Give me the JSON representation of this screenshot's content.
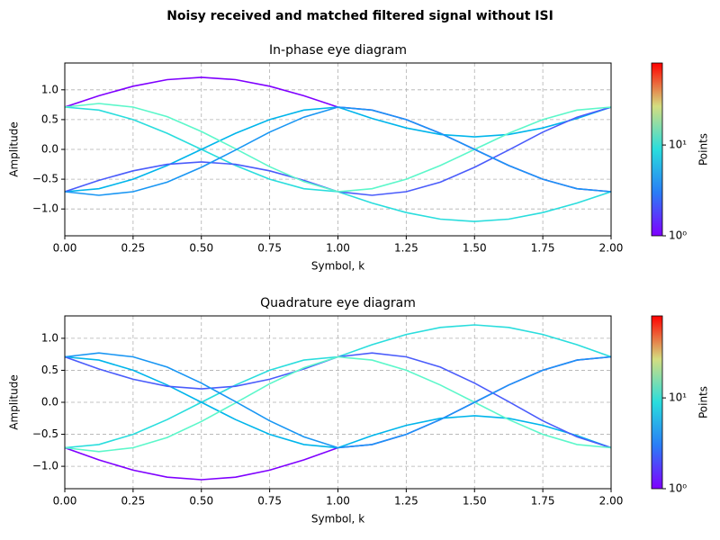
{
  "figure_title": "Noisy received and matched filtered signal without ISI",
  "chart_data": [
    {
      "type": "eye",
      "title": "In-phase eye diagram",
      "x_label": "Symbol, k",
      "y_label": "Amplitude",
      "x": [
        0,
        0.125,
        0.25,
        0.375,
        0.5,
        0.625,
        0.75,
        0.875,
        1,
        1.125,
        1.25,
        1.375,
        1.5,
        1.625,
        1.75,
        1.875,
        2
      ],
      "series": [
        {
          "color": "#7f00ff",
          "values": [
            0.71,
            0.9,
            1.06,
            1.17,
            1.21,
            1.17,
            1.06,
            0.9,
            0.71,
            0.66,
            0.5,
            0.27,
            0,
            -0.27,
            -0.5,
            -0.66,
            -0.71
          ]
        },
        {
          "color": "#2adddd",
          "values": [
            0.71,
            0.66,
            0.5,
            0.27,
            0,
            -0.27,
            -0.5,
            -0.66,
            -0.71,
            -0.9,
            -1.06,
            -1.17,
            -1.21,
            -1.17,
            -1.06,
            -0.9,
            -0.71
          ]
        },
        {
          "color": "#00b5eb",
          "values": [
            -0.71,
            -0.66,
            -0.5,
            -0.27,
            0,
            0.27,
            0.5,
            0.66,
            0.71,
            0.52,
            0.36,
            0.25,
            0.21,
            0.25,
            0.36,
            0.52,
            0.71
          ]
        },
        {
          "color": "#4a5cfb",
          "values": [
            -0.71,
            -0.52,
            -0.36,
            -0.25,
            -0.21,
            -0.25,
            -0.36,
            -0.52,
            -0.71,
            -0.77,
            -0.71,
            -0.55,
            -0.3,
            -0.01,
            0.29,
            0.54,
            0.71
          ]
        },
        {
          "color": "#5cf7ca",
          "values": [
            0.71,
            0.77,
            0.71,
            0.55,
            0.3,
            0.01,
            -0.29,
            -0.54,
            -0.71,
            -0.66,
            -0.5,
            -0.27,
            0,
            0.27,
            0.5,
            0.66,
            0.71
          ]
        },
        {
          "color": "#1996f3",
          "values": [
            -0.71,
            -0.77,
            -0.71,
            -0.55,
            -0.3,
            -0.01,
            0.29,
            0.54,
            0.71,
            0.66,
            0.5,
            0.27,
            0,
            -0.27,
            -0.5,
            -0.66,
            -0.71
          ]
        }
      ],
      "xlim": [
        0,
        2
      ],
      "ylim": [
        -1.45,
        1.45
      ],
      "xticks": [
        {
          "value": 0,
          "label": "0.00"
        },
        {
          "value": 0.25,
          "label": "0.25"
        },
        {
          "value": 0.5,
          "label": "0.50"
        },
        {
          "value": 0.75,
          "label": "0.75"
        },
        {
          "value": 1,
          "label": "1.00"
        },
        {
          "value": 1.25,
          "label": "1.25"
        },
        {
          "value": 1.5,
          "label": "1.50"
        },
        {
          "value": 1.75,
          "label": "1.75"
        },
        {
          "value": 2,
          "label": "2.00"
        }
      ],
      "yticks": [
        {
          "value": -1,
          "label": "−1.0"
        },
        {
          "value": -0.5,
          "label": "−0.5"
        },
        {
          "value": 0,
          "label": "0.0"
        },
        {
          "value": 0.5,
          "label": "0.5"
        },
        {
          "value": 1,
          "label": "1.0"
        }
      ],
      "grid": true,
      "colorbar": {
        "label": "Points",
        "log": true,
        "clim": [
          1,
          80
        ],
        "ticks": [
          {
            "value": 1,
            "label": "10⁰"
          },
          {
            "value": 10,
            "label": "10¹"
          }
        ]
      }
    },
    {
      "type": "eye",
      "title": "Quadrature eye diagram",
      "x_label": "Symbol, k",
      "y_label": "Amplitude",
      "x": [
        0,
        0.125,
        0.25,
        0.375,
        0.5,
        0.625,
        0.75,
        0.875,
        1,
        1.125,
        1.25,
        1.375,
        1.5,
        1.625,
        1.75,
        1.875,
        2
      ],
      "series": [
        {
          "color": "#7f00ff",
          "values": [
            -0.71,
            -0.9,
            -1.06,
            -1.17,
            -1.21,
            -1.17,
            -1.06,
            -0.9,
            -0.71,
            -0.66,
            -0.5,
            -0.27,
            0,
            0.27,
            0.5,
            0.66,
            0.71
          ]
        },
        {
          "color": "#2adddd",
          "values": [
            -0.71,
            -0.66,
            -0.5,
            -0.27,
            0,
            0.27,
            0.5,
            0.66,
            0.71,
            0.9,
            1.06,
            1.17,
            1.21,
            1.17,
            1.06,
            0.9,
            0.71
          ]
        },
        {
          "color": "#00b5eb",
          "values": [
            0.71,
            0.66,
            0.5,
            0.27,
            0,
            -0.27,
            -0.5,
            -0.66,
            -0.71,
            -0.52,
            -0.36,
            -0.25,
            -0.21,
            -0.25,
            -0.36,
            -0.52,
            -0.71
          ]
        },
        {
          "color": "#4a5cfb",
          "values": [
            0.71,
            0.52,
            0.36,
            0.25,
            0.21,
            0.25,
            0.36,
            0.52,
            0.71,
            0.77,
            0.71,
            0.55,
            0.3,
            0.01,
            -0.29,
            -0.54,
            -0.71
          ]
        },
        {
          "color": "#5cf7ca",
          "values": [
            -0.71,
            -0.77,
            -0.71,
            -0.55,
            -0.3,
            -0.01,
            0.29,
            0.54,
            0.71,
            0.66,
            0.5,
            0.27,
            0,
            -0.27,
            -0.5,
            -0.66,
            -0.71
          ]
        },
        {
          "color": "#1996f3",
          "values": [
            0.71,
            0.77,
            0.71,
            0.55,
            0.3,
            0.01,
            -0.29,
            -0.54,
            -0.71,
            -0.66,
            -0.5,
            -0.27,
            0,
            0.27,
            0.5,
            0.66,
            0.71
          ]
        }
      ],
      "xlim": [
        0,
        2
      ],
      "ylim": [
        -1.35,
        1.35
      ],
      "xticks": [
        {
          "value": 0,
          "label": "0.00"
        },
        {
          "value": 0.25,
          "label": "0.25"
        },
        {
          "value": 0.5,
          "label": "0.50"
        },
        {
          "value": 0.75,
          "label": "0.75"
        },
        {
          "value": 1,
          "label": "1.00"
        },
        {
          "value": 1.25,
          "label": "1.25"
        },
        {
          "value": 1.5,
          "label": "1.50"
        },
        {
          "value": 1.75,
          "label": "1.75"
        },
        {
          "value": 2,
          "label": "2.00"
        }
      ],
      "yticks": [
        {
          "value": -1,
          "label": "−1.0"
        },
        {
          "value": -0.5,
          "label": "−0.5"
        },
        {
          "value": 0,
          "label": "0.0"
        },
        {
          "value": 0.5,
          "label": "0.5"
        },
        {
          "value": 1,
          "label": "1.0"
        }
      ],
      "grid": true,
      "colorbar": {
        "label": "Points",
        "log": true,
        "clim": [
          1,
          80
        ],
        "ticks": [
          {
            "value": 1,
            "label": "10⁰"
          },
          {
            "value": 10,
            "label": "10¹"
          }
        ]
      }
    }
  ]
}
